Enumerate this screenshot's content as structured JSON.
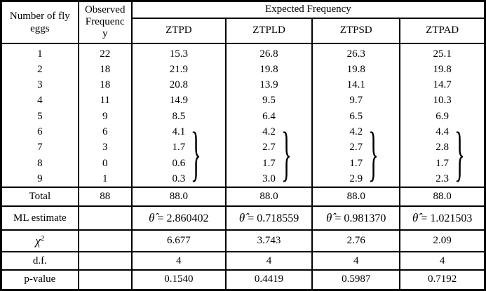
{
  "header": {
    "eggs_label": "Number of fly eggs",
    "observed_label_lines": [
      "Observed",
      "Frequenc",
      "y"
    ],
    "expected_group_label": "Expected Frequency",
    "models": [
      "ZTPD",
      "ZTPLD",
      "ZTPSD",
      "ZTPAD"
    ]
  },
  "body": {
    "eggs": [
      "1",
      "2",
      "3",
      "4",
      "5",
      "6",
      "7",
      "8",
      "9"
    ],
    "observed": [
      "22",
      "18",
      "18",
      "11",
      "9",
      "6",
      "3",
      "0",
      "1"
    ]
  },
  "expected": {
    "ztpd": {
      "plain": [
        "15.3",
        "21.9",
        "20.8",
        "14.9",
        "8.5"
      ],
      "braced": [
        "4.1",
        "1.7",
        "0.6",
        "0.3"
      ]
    },
    "ztpld": {
      "plain": [
        "26.8",
        "19.8",
        "13.9",
        "9.5",
        "6.4"
      ],
      "braced": [
        "4.2",
        "2.7",
        "1.7",
        "3.0"
      ]
    },
    "ztpsd": {
      "plain": [
        "26.3",
        "19.8",
        "14.1",
        "9.7",
        "6.5"
      ],
      "braced": [
        "4.2",
        "2.7",
        "1.7",
        "2.9"
      ]
    },
    "ztpad": {
      "plain": [
        "25.1",
        "19.8",
        "14.7",
        "10.3",
        "6.9"
      ],
      "braced": [
        "4.4",
        "2.8",
        "1.7",
        "2.3"
      ]
    }
  },
  "brace_glyph": "}",
  "rows": {
    "total": {
      "label": "Total",
      "observed": "88",
      "values": [
        "88.0",
        "88.0",
        "88.0",
        "88.0"
      ]
    },
    "ml": {
      "label": "ML estimate",
      "symbol": "θ̂",
      "eq": "=",
      "values": [
        "2.860402",
        "0.718559",
        "0.981370",
        "1.021503"
      ]
    },
    "chi_square": {
      "label_base": "χ",
      "label_sup": "2",
      "values": [
        "6.677",
        "3.743",
        "2.76",
        "2.09"
      ]
    },
    "df": {
      "label": "d.f.",
      "values": [
        "4",
        "4",
        "4",
        "4"
      ]
    },
    "p_value": {
      "label": "p-value",
      "values": [
        "0.1540",
        "0.4419",
        "0.5987",
        "0.7192"
      ]
    }
  }
}
